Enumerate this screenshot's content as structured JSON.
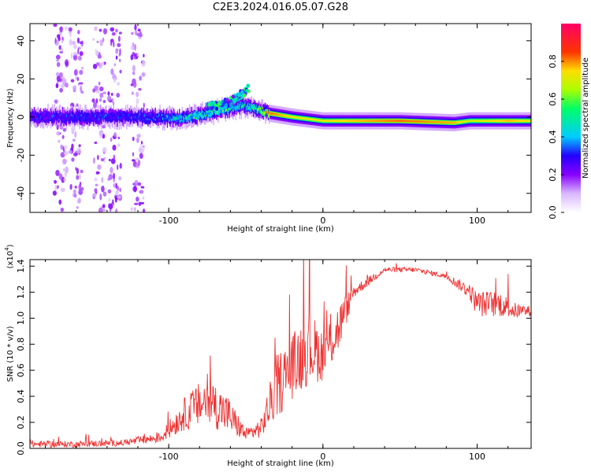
{
  "title": "C2E3.2024.016.05.07.G28",
  "chart_data": [
    {
      "type": "heatmap",
      "xlabel": "Height of straight line (km)",
      "ylabel": "Frequency (Hz)",
      "xlim": [
        -190,
        135
      ],
      "ylim": [
        -50,
        49
      ],
      "x_ticks": [
        -100,
        0,
        100
      ],
      "x_tick_labels": [
        "-100",
        "0",
        "100"
      ],
      "y_ticks": [
        -40,
        -20,
        0,
        20,
        40
      ],
      "y_tick_labels": [
        "-40",
        "-20",
        "0",
        "20",
        "40"
      ],
      "colorbar": {
        "label": "Normalized spectral amplitude",
        "range": [
          0,
          1
        ],
        "ticks": [
          0.0,
          0.2,
          0.4,
          0.6,
          0.8
        ],
        "tick_labels": [
          "0.0",
          "0.2",
          "0.4",
          "0.6",
          "0.8"
        ],
        "colormap": [
          "#ffffff",
          "#d9b8ff",
          "#8800ff",
          "#2200ff",
          "#00ccff",
          "#00ff66",
          "#aaff00",
          "#ffdd00",
          "#ff3300",
          "#ff0066"
        ]
      },
      "ridge": [
        {
          "x": -190,
          "y": 0,
          "amp": 0.35
        },
        {
          "x": -150,
          "y": 0,
          "amp": 0.4
        },
        {
          "x": -110,
          "y": 0,
          "amp": 0.4
        },
        {
          "x": -95,
          "y": -1,
          "amp": 0.55
        },
        {
          "x": -80,
          "y": 1,
          "amp": 0.6
        },
        {
          "x": -65,
          "y": 4,
          "amp": 0.6
        },
        {
          "x": -50,
          "y": 6,
          "amp": 0.55
        },
        {
          "x": -35,
          "y": 2,
          "amp": 0.85
        },
        {
          "x": -20,
          "y": 0,
          "amp": 0.75
        },
        {
          "x": 0,
          "y": -2,
          "amp": 0.75
        },
        {
          "x": 50,
          "y": -2,
          "amp": 0.85
        },
        {
          "x": 85,
          "y": -3,
          "amp": 0.8
        },
        {
          "x": 95,
          "y": -2,
          "amp": 0.7
        },
        {
          "x": 120,
          "y": -2,
          "amp": 0.8
        },
        {
          "x": 135,
          "y": -2,
          "amp": 0.75
        }
      ],
      "upper_branch": [
        {
          "x": -75,
          "y": 5
        },
        {
          "x": -60,
          "y": 8
        },
        {
          "x": -48,
          "y": 15
        }
      ],
      "scatter_columns_x": [
        -170,
        -160,
        -145,
        -135,
        -120
      ]
    },
    {
      "type": "line",
      "xlabel": "Height of straight line (km)",
      "ylabel": "SNR (10 * v/v)",
      "multiplier_label": "(x10",
      "multiplier_exp": "4",
      "multiplier_close": ")",
      "xlim": [
        -190,
        135
      ],
      "ylim": [
        0,
        1.45
      ],
      "x_ticks": [
        -100,
        0,
        100
      ],
      "x_tick_labels": [
        "-100",
        "0",
        "100"
      ],
      "y_ticks": [
        0.0,
        0.2,
        0.4,
        0.6,
        0.8,
        1.0,
        1.2,
        1.4
      ],
      "y_tick_labels": [
        "0.0",
        "0.2",
        "0.4",
        "0.6",
        "0.8",
        "1.0",
        "1.2",
        "1.4"
      ],
      "color": "#ee3333",
      "envelope": [
        {
          "x": -190,
          "y": 0.03,
          "spread": 0.05
        },
        {
          "x": -160,
          "y": 0.03,
          "spread": 0.05
        },
        {
          "x": -130,
          "y": 0.04,
          "spread": 0.05
        },
        {
          "x": -105,
          "y": 0.08,
          "spread": 0.08
        },
        {
          "x": -90,
          "y": 0.25,
          "spread": 0.25
        },
        {
          "x": -75,
          "y": 0.35,
          "spread": 0.4
        },
        {
          "x": -62,
          "y": 0.25,
          "spread": 0.3
        },
        {
          "x": -50,
          "y": 0.1,
          "spread": 0.1
        },
        {
          "x": -40,
          "y": 0.15,
          "spread": 0.15
        },
        {
          "x": -30,
          "y": 0.45,
          "spread": 0.5
        },
        {
          "x": -20,
          "y": 0.6,
          "spread": 0.5
        },
        {
          "x": -10,
          "y": 0.75,
          "spread": 0.6
        },
        {
          "x": 0,
          "y": 0.7,
          "spread": 0.4
        },
        {
          "x": 10,
          "y": 0.9,
          "spread": 0.4
        },
        {
          "x": 20,
          "y": 1.2,
          "spread": 0.1
        },
        {
          "x": 40,
          "y": 1.37,
          "spread": 0.04
        },
        {
          "x": 60,
          "y": 1.37,
          "spread": 0.04
        },
        {
          "x": 80,
          "y": 1.32,
          "spread": 0.04
        },
        {
          "x": 95,
          "y": 1.2,
          "spread": 0.12
        },
        {
          "x": 100,
          "y": 1.1,
          "spread": 0.2
        },
        {
          "x": 115,
          "y": 1.1,
          "spread": 0.2
        },
        {
          "x": 125,
          "y": 1.05,
          "spread": 0.12
        },
        {
          "x": 135,
          "y": 1.05,
          "spread": 0.08
        }
      ]
    }
  ]
}
